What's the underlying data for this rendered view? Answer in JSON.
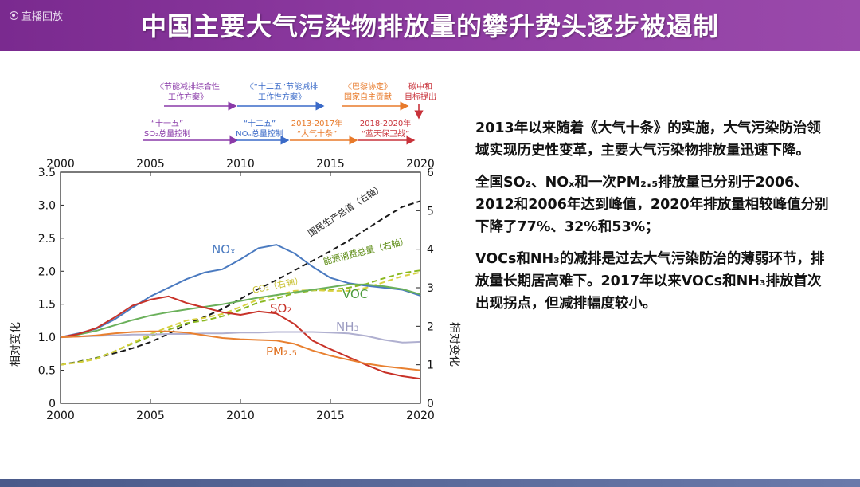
{
  "header": {
    "live_badge": "直播回放",
    "title": "中国主要大气污染物排放量的攀升势头逐步被遏制"
  },
  "policy_timeline": [
    {
      "id": "jieneng",
      "lines": [
        "《节能减排综合性",
        "工作方案》"
      ],
      "color": "#8a3aa8"
    },
    {
      "id": "12th",
      "lines": [
        "《“十二五”节能减排",
        "工作性方案》"
      ],
      "color": "#3a6ac8"
    },
    {
      "id": "paris",
      "lines": [
        "《巴黎协定》",
        "国家自主贡献"
      ],
      "color": "#e87a2a"
    },
    {
      "id": "carbon",
      "lines": [
        "碳中和",
        "目标提出"
      ],
      "color": "#c8323a"
    },
    {
      "id": "so2",
      "lines": [
        "“十一五”",
        "SO₂总量控制"
      ],
      "color": "#8a3aa8"
    },
    {
      "id": "nox",
      "lines": [
        "“十二五”",
        "NOₓ总量控制"
      ],
      "color": "#3a6ac8"
    },
    {
      "id": "tenmeasures",
      "lines": [
        "2013-2017年",
        "“大气十条”"
      ],
      "color": "#e87a2a"
    },
    {
      "id": "bluesky",
      "lines": [
        "2018-2020年",
        "“蓝天保卫战”"
      ],
      "color": "#c8323a"
    }
  ],
  "chart_data": {
    "type": "line",
    "xlabel": "",
    "ylabel_left": "相对变化",
    "ylabel_right": "相对变化",
    "xlim": [
      2000,
      2020
    ],
    "ylim_left": [
      0,
      3.5
    ],
    "ylim_right": [
      0,
      6
    ],
    "x_ticks": [
      "2000",
      "2005",
      "2010",
      "2015",
      "2020"
    ],
    "y_left_ticks": [
      "0",
      "0.5",
      "1.0",
      "1.5",
      "2.0",
      "2.5",
      "3.0",
      "3.5"
    ],
    "y_right_ticks": [
      "0",
      "1",
      "2",
      "3",
      "4",
      "5",
      "6"
    ],
    "x": [
      2000,
      2001,
      2002,
      2003,
      2004,
      2005,
      2006,
      2007,
      2008,
      2009,
      2010,
      2011,
      2012,
      2013,
      2014,
      2015,
      2016,
      2017,
      2018,
      2019,
      2020
    ],
    "series": [
      {
        "name": "国民生产总值（右轴）",
        "axis": "right",
        "color": "#1a1a1a",
        "dashed": true,
        "values": [
          1.0,
          1.08,
          1.18,
          1.3,
          1.43,
          1.59,
          1.8,
          2.05,
          2.24,
          2.45,
          2.71,
          2.97,
          3.2,
          3.45,
          3.7,
          3.95,
          4.22,
          4.52,
          4.82,
          5.1,
          5.25
        ]
      },
      {
        "name": "能源消费总量（右轴）",
        "axis": "right",
        "color": "#8ab820",
        "dashed": true,
        "values": [
          1.0,
          1.07,
          1.17,
          1.35,
          1.55,
          1.74,
          1.91,
          2.08,
          2.15,
          2.26,
          2.43,
          2.62,
          2.72,
          2.86,
          2.93,
          2.95,
          3.0,
          3.1,
          3.25,
          3.38,
          3.45
        ]
      },
      {
        "name": "CO₂（右轴）",
        "axis": "right",
        "color": "#d8d040",
        "dashed": true,
        "values": [
          1.0,
          1.06,
          1.15,
          1.35,
          1.57,
          1.8,
          1.98,
          2.15,
          2.22,
          2.32,
          2.5,
          2.7,
          2.8,
          2.92,
          2.94,
          2.92,
          2.92,
          3.0,
          3.15,
          3.3,
          3.4
        ]
      },
      {
        "name": "NOₓ",
        "axis": "left",
        "color": "#4a7ac0",
        "dashed": false,
        "values": [
          1.0,
          1.06,
          1.13,
          1.27,
          1.45,
          1.62,
          1.75,
          1.88,
          1.98,
          2.03,
          2.18,
          2.35,
          2.4,
          2.27,
          2.07,
          1.9,
          1.82,
          1.78,
          1.75,
          1.72,
          1.63
        ]
      },
      {
        "name": "VOC",
        "axis": "left",
        "color": "#6ab05a",
        "dashed": false,
        "values": [
          1.0,
          1.04,
          1.1,
          1.18,
          1.26,
          1.33,
          1.38,
          1.42,
          1.46,
          1.5,
          1.55,
          1.6,
          1.64,
          1.68,
          1.72,
          1.76,
          1.8,
          1.8,
          1.77,
          1.73,
          1.65
        ]
      },
      {
        "name": "SO₂",
        "axis": "left",
        "color": "#c83228",
        "dashed": false,
        "values": [
          1.0,
          1.05,
          1.14,
          1.3,
          1.48,
          1.57,
          1.62,
          1.52,
          1.45,
          1.38,
          1.34,
          1.39,
          1.36,
          1.2,
          0.95,
          0.82,
          0.7,
          0.58,
          0.47,
          0.41,
          0.37
        ]
      },
      {
        "name": "NH₃",
        "axis": "left",
        "color": "#b0b0d0",
        "dashed": false,
        "values": [
          1.0,
          1.01,
          1.02,
          1.03,
          1.04,
          1.04,
          1.05,
          1.05,
          1.06,
          1.06,
          1.07,
          1.07,
          1.08,
          1.08,
          1.08,
          1.07,
          1.06,
          1.02,
          0.96,
          0.92,
          0.93
        ]
      },
      {
        "name": "PM₂.₅",
        "axis": "left",
        "color": "#e88030",
        "dashed": false,
        "values": [
          1.0,
          1.01,
          1.03,
          1.06,
          1.08,
          1.09,
          1.09,
          1.07,
          1.03,
          0.99,
          0.97,
          0.96,
          0.95,
          0.9,
          0.8,
          0.72,
          0.66,
          0.6,
          0.56,
          0.53,
          0.5
        ]
      }
    ]
  },
  "content": {
    "paragraph1": "2013年以来随着《大气十条》的实施，大气污染防治领域实现历史性变革，主要大气污染物排放量迅速下降。",
    "paragraph2": "全国SO₂、NOₓ和一次PM₂.₅排放量已分别于2006、2012和2006年达到峰值，2020年排放量相较峰值分别下降了77%、32%和53%；",
    "paragraph3": "VOCs和NH₃的减排是过去大气污染防治的薄弱环节，排放量长期居高难下。2017年以来VOCs和NH₃排放首次出现拐点，但减排幅度较小。"
  }
}
